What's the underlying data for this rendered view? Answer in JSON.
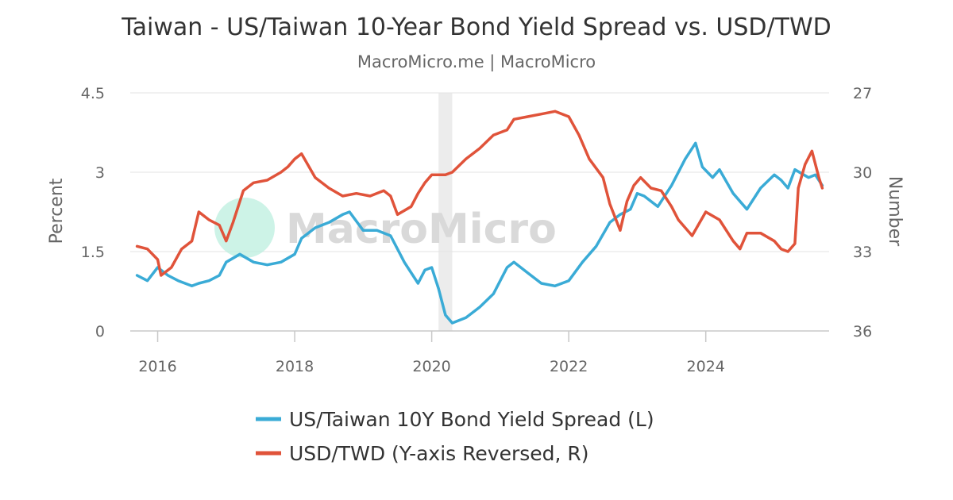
{
  "chart_data": {
    "type": "line",
    "title": "Taiwan - US/Taiwan 10-Year Bond Yield Spread vs. USD/TWD",
    "subtitle": "MacroMicro.me | MacroMicro",
    "watermark": "MacroMicro",
    "left_axis": {
      "label": "Percent",
      "min": 0,
      "max": 4.5,
      "ticks": [
        0,
        1.5,
        3,
        4.5
      ],
      "tick_labels": [
        "0",
        "1.5",
        "3",
        "4.5"
      ]
    },
    "right_axis": {
      "label": "Number",
      "min": 27,
      "max": 36,
      "reversed": true,
      "ticks": [
        27,
        30,
        33,
        36
      ],
      "tick_labels": [
        "27",
        "30",
        "33",
        "36"
      ]
    },
    "x_axis": {
      "min": 2015.6,
      "max": 2025.8,
      "ticks": [
        2016,
        2018,
        2020,
        2022,
        2024
      ],
      "tick_labels": [
        "2016",
        "2018",
        "2020",
        "2022",
        "2024"
      ]
    },
    "shaded_band": [
      2020.1,
      2020.3
    ],
    "grid": true,
    "legend_position": "bottom",
    "series": [
      {
        "name": "US/Taiwan 10Y Bond Yield Spread (L)",
        "axis": "left",
        "color": "#3aabd6",
        "x": [
          2015.7,
          2015.85,
          2016.0,
          2016.15,
          2016.3,
          2016.5,
          2016.6,
          2016.75,
          2016.9,
          2017.0,
          2017.2,
          2017.4,
          2017.6,
          2017.8,
          2018.0,
          2018.1,
          2018.3,
          2018.5,
          2018.7,
          2018.8,
          2019.0,
          2019.2,
          2019.4,
          2019.6,
          2019.8,
          2019.9,
          2020.0,
          2020.1,
          2020.2,
          2020.3,
          2020.5,
          2020.7,
          2020.9,
          2021.1,
          2021.2,
          2021.4,
          2021.6,
          2021.8,
          2022.0,
          2022.2,
          2022.4,
          2022.6,
          2022.75,
          2022.9,
          2023.0,
          2023.1,
          2023.3,
          2023.5,
          2023.7,
          2023.85,
          2023.95,
          2024.1,
          2024.2,
          2024.4,
          2024.5,
          2024.6,
          2024.8,
          2025.0,
          2025.1,
          2025.2,
          2025.3,
          2025.5,
          2025.6,
          2025.7
        ],
        "y": [
          1.05,
          0.95,
          1.2,
          1.05,
          0.95,
          0.85,
          0.9,
          0.95,
          1.05,
          1.3,
          1.45,
          1.3,
          1.25,
          1.3,
          1.45,
          1.75,
          1.95,
          2.05,
          2.2,
          2.25,
          1.9,
          1.9,
          1.8,
          1.3,
          0.9,
          1.15,
          1.2,
          0.8,
          0.3,
          0.15,
          0.25,
          0.45,
          0.7,
          1.2,
          1.3,
          1.1,
          0.9,
          0.85,
          0.95,
          1.3,
          1.6,
          2.05,
          2.2,
          2.3,
          2.6,
          2.55,
          2.35,
          2.75,
          3.25,
          3.55,
          3.1,
          2.9,
          3.05,
          2.6,
          2.45,
          2.3,
          2.7,
          2.95,
          2.85,
          2.7,
          3.05,
          2.9,
          2.95,
          2.75
        ]
      },
      {
        "name": "USD/TWD (Y-axis Reversed, R)",
        "axis": "right",
        "color": "#e0533a",
        "x": [
          2015.7,
          2015.85,
          2016.0,
          2016.05,
          2016.2,
          2016.35,
          2016.5,
          2016.6,
          2016.75,
          2016.9,
          2017.0,
          2017.1,
          2017.25,
          2017.4,
          2017.6,
          2017.8,
          2017.9,
          2018.0,
          2018.1,
          2018.3,
          2018.5,
          2018.7,
          2018.9,
          2019.1,
          2019.3,
          2019.4,
          2019.5,
          2019.7,
          2019.8,
          2019.9,
          2020.0,
          2020.2,
          2020.3,
          2020.5,
          2020.7,
          2020.9,
          2021.1,
          2021.2,
          2021.4,
          2021.6,
          2021.8,
          2022.0,
          2022.15,
          2022.3,
          2022.5,
          2022.6,
          2022.75,
          2022.85,
          2022.95,
          2023.05,
          2023.2,
          2023.35,
          2023.5,
          2023.6,
          2023.8,
          2024.0,
          2024.2,
          2024.4,
          2024.5,
          2024.6,
          2024.8,
          2025.0,
          2025.1,
          2025.2,
          2025.3,
          2025.35,
          2025.45,
          2025.55,
          2025.65,
          2025.7
        ],
        "y": [
          32.8,
          32.9,
          33.3,
          33.9,
          33.6,
          32.9,
          32.6,
          31.5,
          31.8,
          32.0,
          32.6,
          31.9,
          30.7,
          30.4,
          30.3,
          30.0,
          29.8,
          29.5,
          29.3,
          30.2,
          30.6,
          30.9,
          30.8,
          30.9,
          30.7,
          30.9,
          31.6,
          31.3,
          30.8,
          30.4,
          30.1,
          30.1,
          30.0,
          29.5,
          29.1,
          28.6,
          28.4,
          28.0,
          27.9,
          27.8,
          27.7,
          27.9,
          28.6,
          29.5,
          30.2,
          31.2,
          32.2,
          31.1,
          30.5,
          30.2,
          30.6,
          30.7,
          31.3,
          31.8,
          32.4,
          31.5,
          31.8,
          32.6,
          32.9,
          32.3,
          32.3,
          32.6,
          32.9,
          33.0,
          32.7,
          30.6,
          29.7,
          29.2,
          30.2,
          30.6
        ]
      }
    ]
  }
}
